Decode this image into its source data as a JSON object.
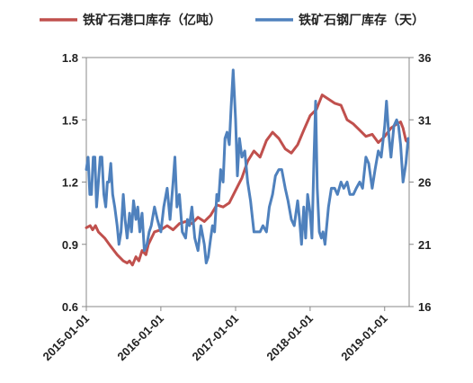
{
  "chart_data": {
    "type": "line",
    "title": "",
    "legend_position": "top",
    "grid": false,
    "left_axis": {
      "ylim": [
        0.6,
        1.8
      ],
      "ticks": [
        "0.6",
        "0.9",
        "1.2",
        "1.5",
        "1.8"
      ]
    },
    "right_axis": {
      "ylim": [
        16,
        36
      ],
      "ticks": [
        "16",
        "21",
        "26",
        "31",
        "36"
      ]
    },
    "x_axis": {
      "range": [
        "2015-01-01",
        "2019-05-01"
      ],
      "ticks": [
        "2015-01-01",
        "2016-01-01",
        "2017-01-01",
        "2018-01-01",
        "2019-01-01"
      ]
    },
    "series": [
      {
        "name": "铁矿石港口库存（亿吨）",
        "axis": "left",
        "color": "#c0504d",
        "points": [
          [
            "2015-01-01",
            0.98
          ],
          [
            "2015-01-20",
            0.99
          ],
          [
            "2015-02-01",
            0.97
          ],
          [
            "2015-02-15",
            0.99
          ],
          [
            "2015-03-01",
            0.96
          ],
          [
            "2015-04-01",
            0.93
          ],
          [
            "2015-05-01",
            0.89
          ],
          [
            "2015-06-01",
            0.85
          ],
          [
            "2015-07-01",
            0.82
          ],
          [
            "2015-07-20",
            0.81
          ],
          [
            "2015-08-01",
            0.82
          ],
          [
            "2015-08-15",
            0.8
          ],
          [
            "2015-09-01",
            0.84
          ],
          [
            "2015-09-15",
            0.82
          ],
          [
            "2015-10-01",
            0.87
          ],
          [
            "2015-10-20",
            0.85
          ],
          [
            "2015-11-01",
            0.9
          ],
          [
            "2015-12-01",
            0.96
          ],
          [
            "2016-01-01",
            0.97
          ],
          [
            "2016-02-01",
            0.99
          ],
          [
            "2016-03-01",
            0.97
          ],
          [
            "2016-04-01",
            1.0
          ],
          [
            "2016-05-01",
            1.01
          ],
          [
            "2016-06-01",
            1.0
          ],
          [
            "2016-07-01",
            1.03
          ],
          [
            "2016-08-01",
            1.01
          ],
          [
            "2016-09-01",
            1.04
          ],
          [
            "2016-10-01",
            1.09
          ],
          [
            "2016-11-01",
            1.08
          ],
          [
            "2016-12-01",
            1.1
          ],
          [
            "2017-01-01",
            1.16
          ],
          [
            "2017-02-01",
            1.22
          ],
          [
            "2017-03-01",
            1.3
          ],
          [
            "2017-04-01",
            1.35
          ],
          [
            "2017-05-01",
            1.32
          ],
          [
            "2017-06-01",
            1.4
          ],
          [
            "2017-07-01",
            1.44
          ],
          [
            "2017-08-01",
            1.41
          ],
          [
            "2017-09-01",
            1.36
          ],
          [
            "2017-10-01",
            1.34
          ],
          [
            "2017-11-01",
            1.38
          ],
          [
            "2017-12-01",
            1.45
          ],
          [
            "2018-01-01",
            1.52
          ],
          [
            "2018-02-01",
            1.55
          ],
          [
            "2018-03-01",
            1.62
          ],
          [
            "2018-04-01",
            1.6
          ],
          [
            "2018-05-01",
            1.58
          ],
          [
            "2018-06-01",
            1.57
          ],
          [
            "2018-07-01",
            1.5
          ],
          [
            "2018-08-01",
            1.48
          ],
          [
            "2018-09-01",
            1.45
          ],
          [
            "2018-10-01",
            1.42
          ],
          [
            "2018-11-01",
            1.43
          ],
          [
            "2018-12-01",
            1.39
          ],
          [
            "2019-01-01",
            1.42
          ],
          [
            "2019-02-01",
            1.46
          ],
          [
            "2019-03-01",
            1.48
          ],
          [
            "2019-03-20",
            1.49
          ],
          [
            "2019-04-01",
            1.46
          ],
          [
            "2019-04-15",
            1.4
          ],
          [
            "2019-04-26",
            1.39
          ]
        ]
      },
      {
        "name": "铁矿石钢厂库存（天）",
        "axis": "right",
        "color": "#4f81bd",
        "points": [
          [
            "2015-01-01",
            27.0
          ],
          [
            "2015-01-10",
            28.0
          ],
          [
            "2015-01-18",
            25.0
          ],
          [
            "2015-01-26",
            25.0
          ],
          [
            "2015-02-04",
            28.0
          ],
          [
            "2015-02-12",
            28.0
          ],
          [
            "2015-02-20",
            24.0
          ],
          [
            "2015-03-01",
            26.0
          ],
          [
            "2015-03-10",
            28.0
          ],
          [
            "2015-03-18",
            28.0
          ],
          [
            "2015-03-28",
            25.0
          ],
          [
            "2015-04-06",
            24.0
          ],
          [
            "2015-04-14",
            26.0
          ],
          [
            "2015-04-22",
            26.0
          ],
          [
            "2015-05-01",
            27.5
          ],
          [
            "2015-05-10",
            25.0
          ],
          [
            "2015-05-20",
            24.0
          ],
          [
            "2015-06-01",
            22.5
          ],
          [
            "2015-06-10",
            21.0
          ],
          [
            "2015-06-20",
            22.0
          ],
          [
            "2015-07-01",
            25.0
          ],
          [
            "2015-07-10",
            23.0
          ],
          [
            "2015-07-20",
            21.5
          ],
          [
            "2015-08-01",
            23.5
          ],
          [
            "2015-08-10",
            22.0
          ],
          [
            "2015-08-20",
            24.5
          ],
          [
            "2015-09-01",
            23.0
          ],
          [
            "2015-09-10",
            24.0
          ],
          [
            "2015-09-20",
            22.0
          ],
          [
            "2015-10-01",
            23.5
          ],
          [
            "2015-10-12",
            20.5
          ],
          [
            "2015-10-25",
            21.0
          ],
          [
            "2015-11-05",
            22.0
          ],
          [
            "2015-11-15",
            22.5
          ],
          [
            "2015-12-01",
            24.0
          ],
          [
            "2015-12-15",
            23.0
          ],
          [
            "2016-01-01",
            22.0
          ],
          [
            "2016-01-15",
            24.0
          ],
          [
            "2016-02-01",
            25.5
          ],
          [
            "2016-02-15",
            23.0
          ],
          [
            "2016-03-01",
            26.0
          ],
          [
            "2016-03-10",
            28.0
          ],
          [
            "2016-03-20",
            24.0
          ],
          [
            "2016-04-01",
            25.0
          ],
          [
            "2016-04-15",
            22.0
          ],
          [
            "2016-05-01",
            21.5
          ],
          [
            "2016-05-10",
            23.0
          ],
          [
            "2016-05-20",
            22.5
          ],
          [
            "2016-06-01",
            24.0
          ],
          [
            "2016-06-15",
            21.5
          ],
          [
            "2016-07-01",
            20.5
          ],
          [
            "2016-07-15",
            22.5
          ],
          [
            "2016-08-01",
            21.0
          ],
          [
            "2016-08-10",
            19.5
          ],
          [
            "2016-08-20",
            20.0
          ],
          [
            "2016-09-01",
            21.5
          ],
          [
            "2016-09-10",
            22.5
          ],
          [
            "2016-09-20",
            22.0
          ],
          [
            "2016-10-01",
            25.0
          ],
          [
            "2016-10-10",
            24.5
          ],
          [
            "2016-10-20",
            27.0
          ],
          [
            "2016-11-01",
            26.0
          ],
          [
            "2016-11-10",
            29.5
          ],
          [
            "2016-11-20",
            30.0
          ],
          [
            "2016-12-01",
            29.0
          ],
          [
            "2016-12-10",
            32.0
          ],
          [
            "2016-12-20",
            35.0
          ],
          [
            "2017-01-01",
            31.0
          ],
          [
            "2017-01-10",
            26.5
          ],
          [
            "2017-01-20",
            29.5
          ],
          [
            "2017-02-01",
            28.0
          ],
          [
            "2017-02-15",
            28.5
          ],
          [
            "2017-03-01",
            26.0
          ],
          [
            "2017-03-15",
            24.5
          ],
          [
            "2017-04-01",
            22.0
          ],
          [
            "2017-04-15",
            22.0
          ],
          [
            "2017-05-01",
            22.0
          ],
          [
            "2017-05-15",
            22.5
          ],
          [
            "2017-06-01",
            22.0
          ],
          [
            "2017-06-15",
            24.0
          ],
          [
            "2017-07-01",
            25.0
          ],
          [
            "2017-07-15",
            26.5
          ],
          [
            "2017-08-01",
            27.0
          ],
          [
            "2017-08-15",
            27.0
          ],
          [
            "2017-09-01",
            25.5
          ],
          [
            "2017-09-15",
            24.5
          ],
          [
            "2017-10-01",
            23.0
          ],
          [
            "2017-10-15",
            22.5
          ],
          [
            "2017-11-01",
            24.5
          ],
          [
            "2017-11-10",
            23.0
          ],
          [
            "2017-11-20",
            21.0
          ],
          [
            "2017-12-01",
            24.0
          ],
          [
            "2017-12-10",
            21.5
          ],
          [
            "2017-12-20",
            25.0
          ],
          [
            "2018-01-01",
            23.5
          ],
          [
            "2018-01-10",
            21.5
          ],
          [
            "2018-01-20",
            28.0
          ],
          [
            "2018-01-28",
            32.5
          ],
          [
            "2018-02-05",
            25.5
          ],
          [
            "2018-02-15",
            22.0
          ],
          [
            "2018-02-25",
            21.5
          ],
          [
            "2018-03-05",
            22.0
          ],
          [
            "2018-03-15",
            21.0
          ],
          [
            "2018-04-01",
            24.0
          ],
          [
            "2018-04-15",
            25.5
          ],
          [
            "2018-05-01",
            25.5
          ],
          [
            "2018-05-15",
            25.0
          ],
          [
            "2018-06-01",
            26.0
          ],
          [
            "2018-06-15",
            25.5
          ],
          [
            "2018-07-01",
            26.0
          ],
          [
            "2018-07-15",
            25.0
          ],
          [
            "2018-08-01",
            25.0
          ],
          [
            "2018-08-15",
            25.5
          ],
          [
            "2018-09-01",
            26.0
          ],
          [
            "2018-09-15",
            25.5
          ],
          [
            "2018-10-01",
            28.0
          ],
          [
            "2018-10-15",
            27.5
          ],
          [
            "2018-11-01",
            25.5
          ],
          [
            "2018-11-15",
            27.0
          ],
          [
            "2018-12-01",
            28.5
          ],
          [
            "2018-12-15",
            28.0
          ],
          [
            "2019-01-01",
            30.5
          ],
          [
            "2019-01-10",
            32.5
          ],
          [
            "2019-01-20",
            30.0
          ],
          [
            "2019-02-01",
            28.0
          ],
          [
            "2019-02-15",
            30.5
          ],
          [
            "2019-03-01",
            31.0
          ],
          [
            "2019-03-10",
            30.5
          ],
          [
            "2019-03-20",
            29.0
          ],
          [
            "2019-04-01",
            26.0
          ],
          [
            "2019-04-15",
            27.5
          ],
          [
            "2019-04-26",
            29.5
          ]
        ]
      }
    ]
  }
}
